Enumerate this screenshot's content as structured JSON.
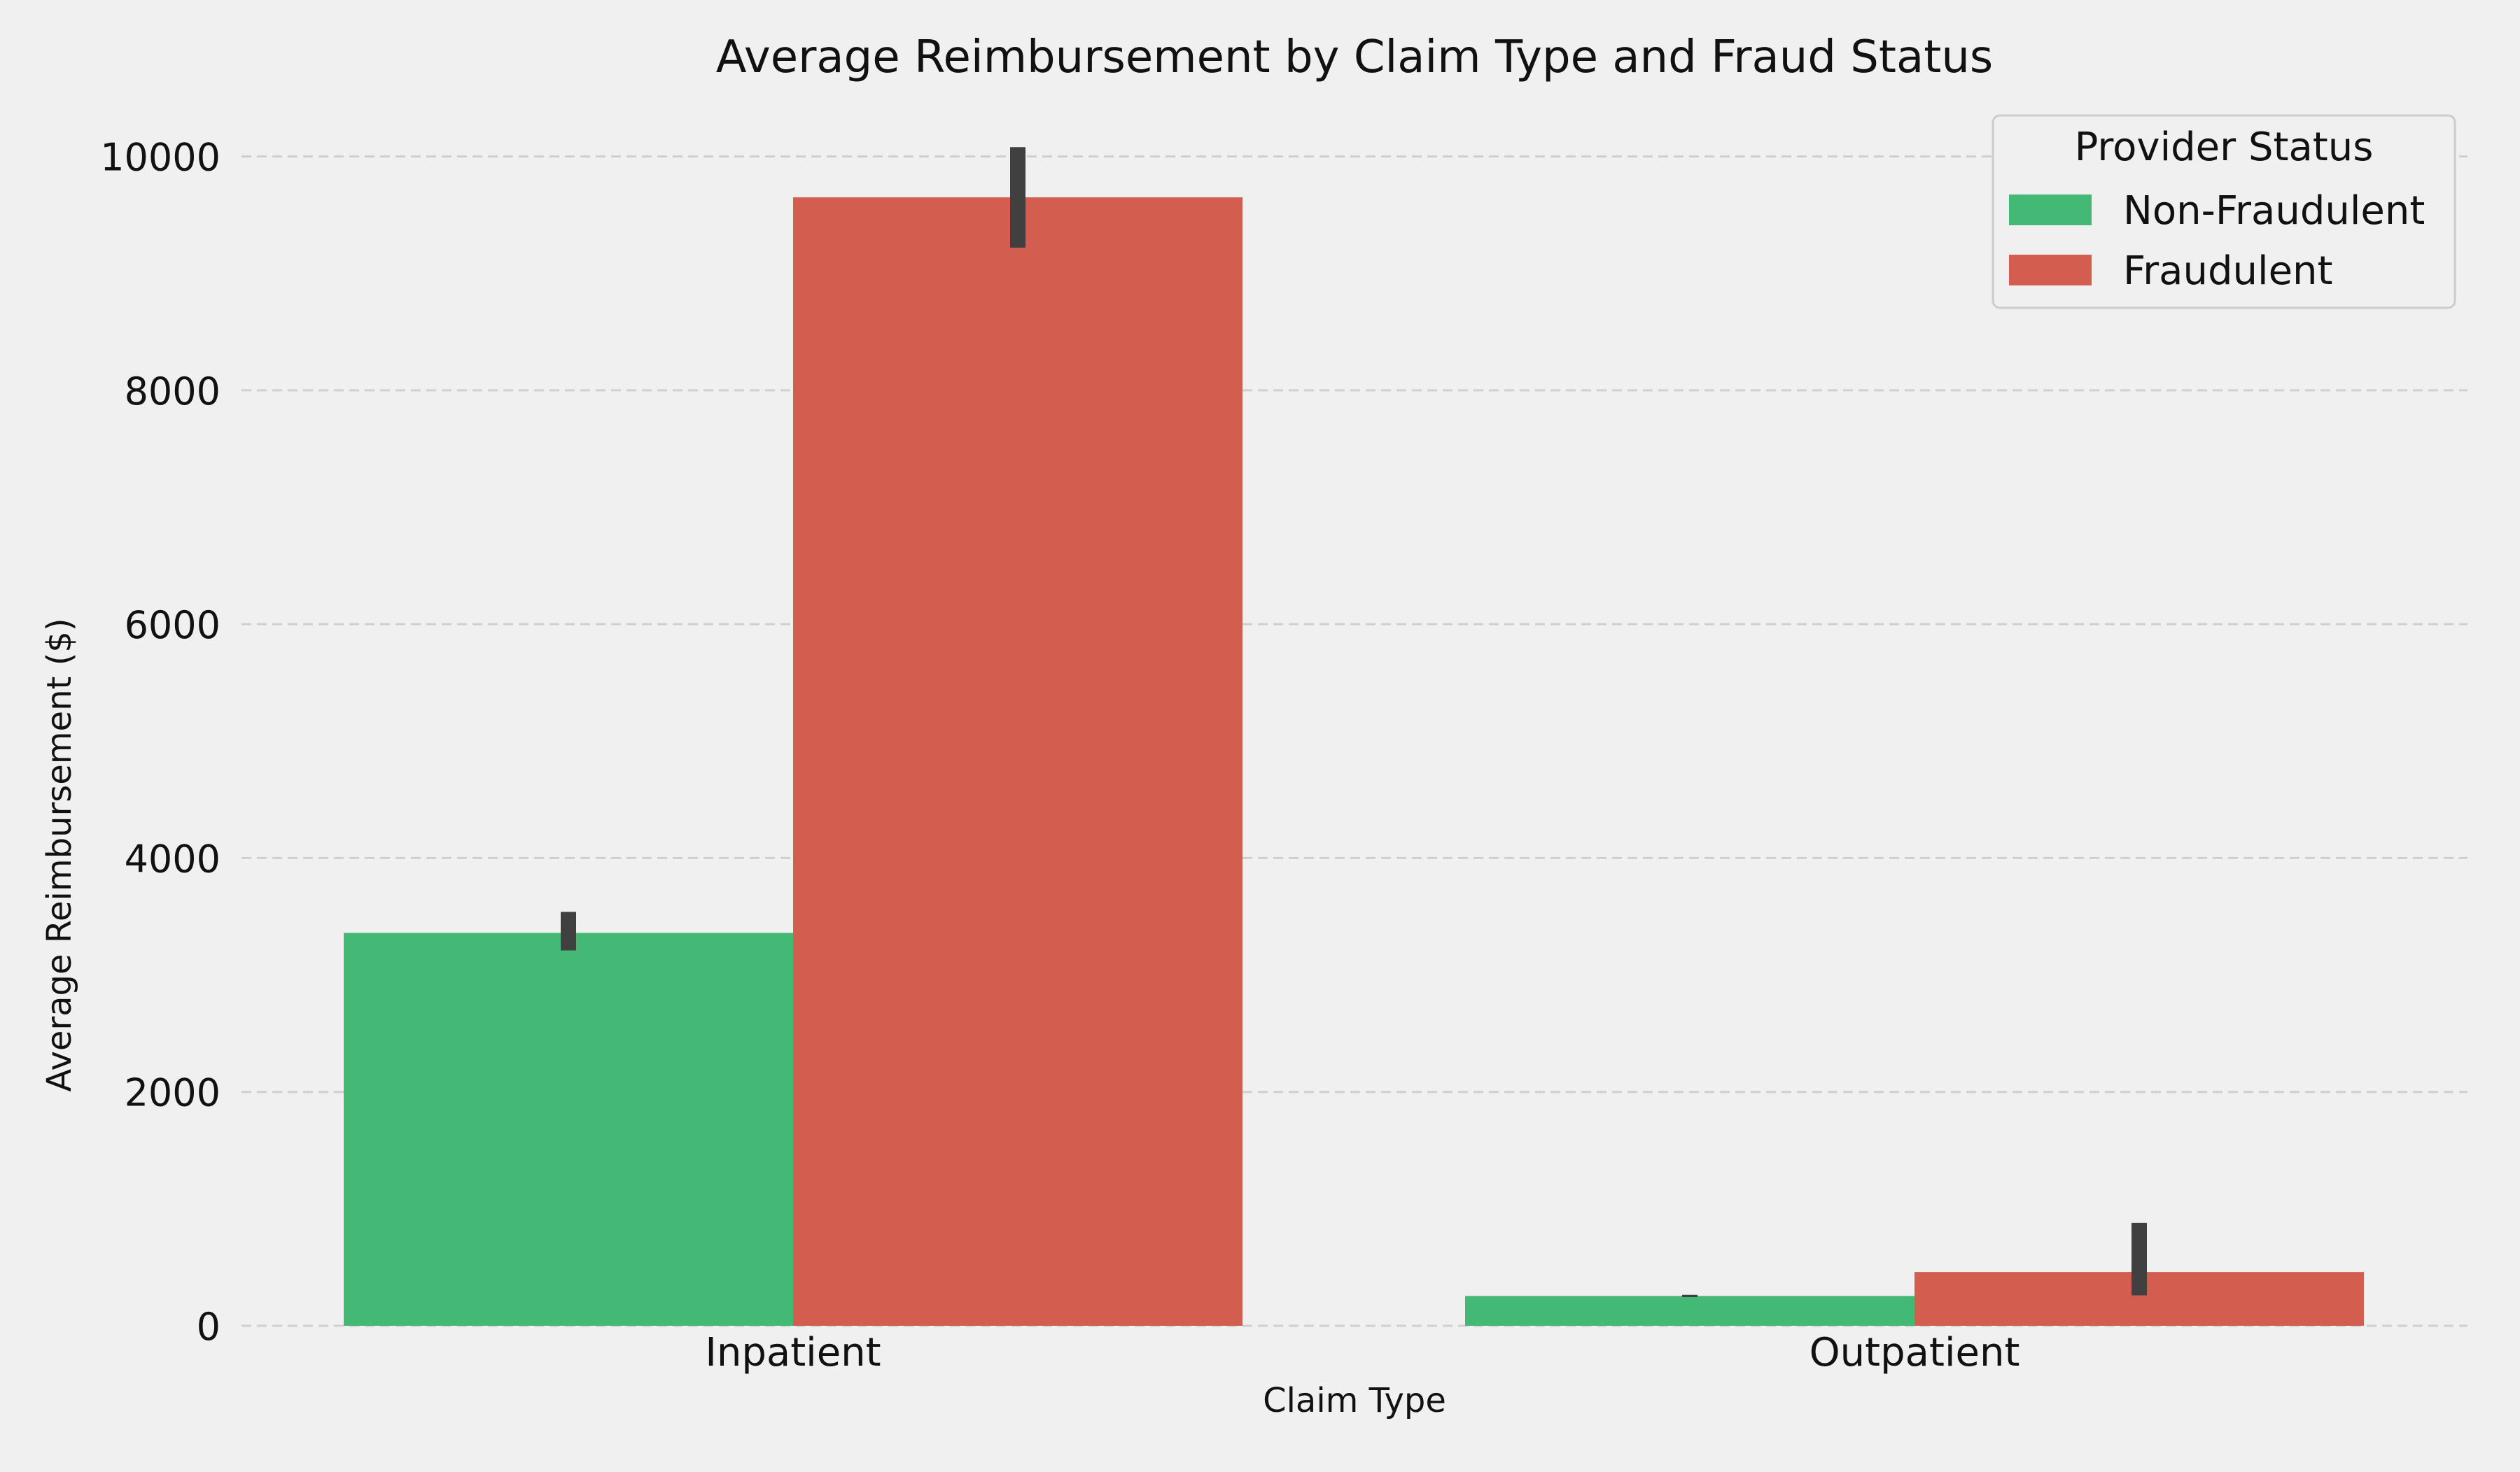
{
  "chart_data": {
    "type": "bar",
    "title": "Average Reimbursement by Claim Type and Fraud Status",
    "xlabel": "Claim Type",
    "ylabel": "Average Reimbursement ($)",
    "categories": [
      "Inpatient",
      "Outpatient"
    ],
    "ylim": [
      0,
      10500
    ],
    "yticks": [
      0,
      2000,
      4000,
      6000,
      8000,
      10000
    ],
    "grid": "y-dashed",
    "legend": {
      "title": "Provider Status",
      "placement": "top-right"
    },
    "series": [
      {
        "name": "Non-Fraudulent",
        "color": "#44b875",
        "values": [
          3360,
          255
        ],
        "error_low": [
          3210,
          245
        ],
        "error_high": [
          3540,
          265
        ]
      },
      {
        "name": "Fraudulent",
        "color": "#d35e50",
        "values": [
          9650,
          460
        ],
        "error_low": [
          9220,
          260
        ],
        "error_high": [
          10080,
          880
        ]
      }
    ],
    "errorbar_color": "#404040"
  }
}
